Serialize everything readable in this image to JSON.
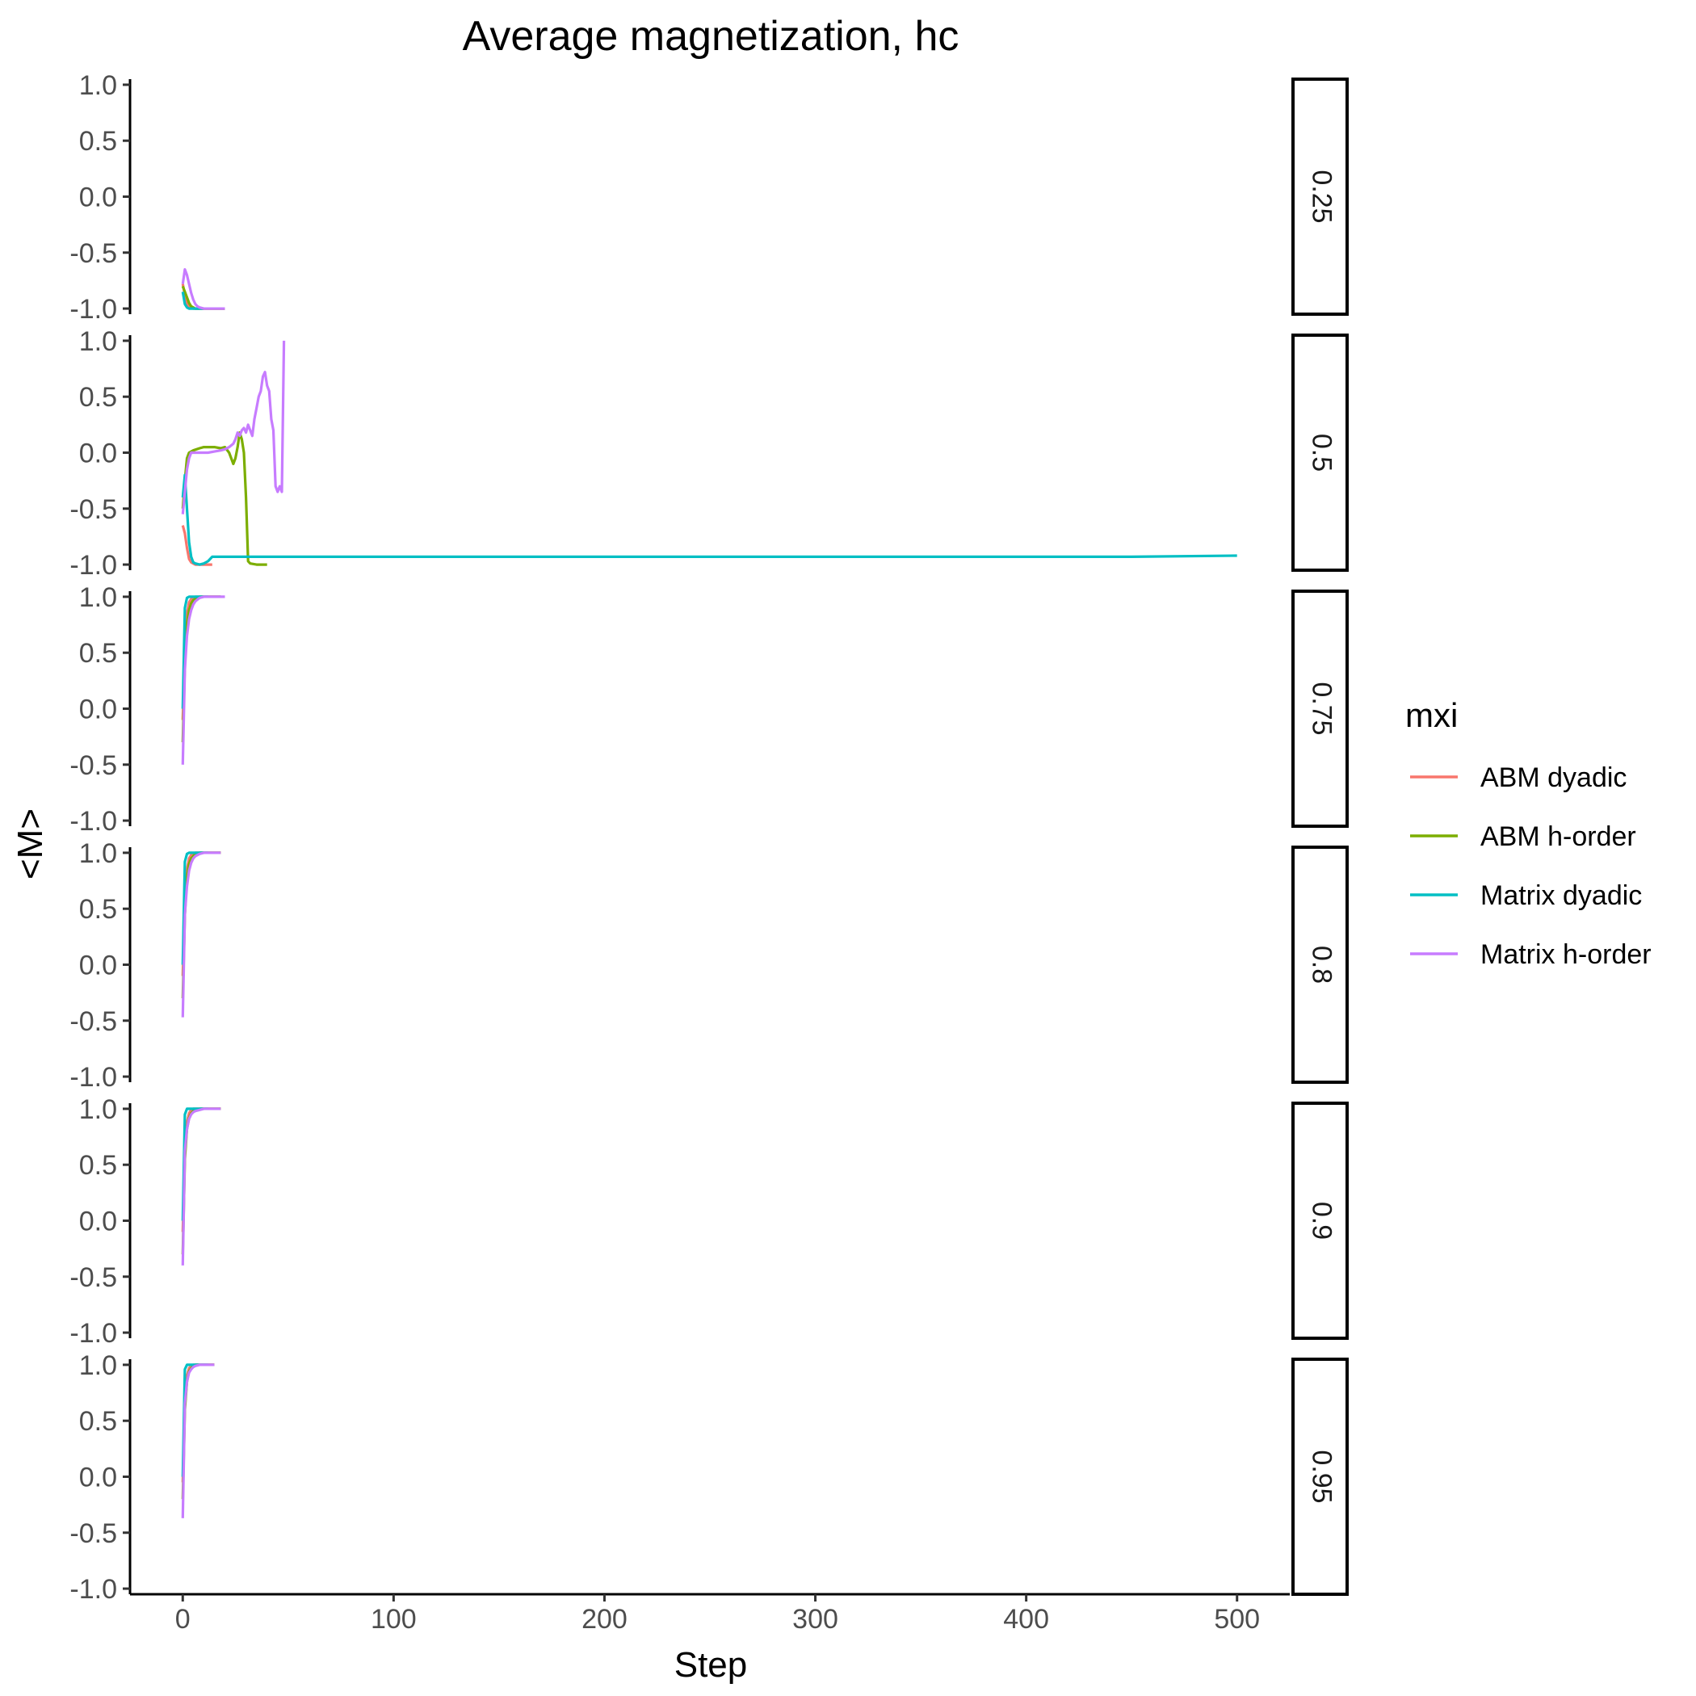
{
  "chart_data": {
    "type": "line",
    "title": "Average magnetization, hc",
    "xlabel": "Step",
    "ylabel": "<M>",
    "xlim": [
      -25,
      525
    ],
    "ylim": [
      -1.05,
      1.05
    ],
    "x_ticks": [
      0,
      100,
      200,
      300,
      400,
      500
    ],
    "y_ticks": [
      1.0,
      0.5,
      0.0,
      -0.5,
      -1.0
    ],
    "x_tick_labels": [
      "0",
      "100",
      "200",
      "300",
      "400",
      "500"
    ],
    "y_tick_labels": [
      "1.0",
      "0.5",
      "0.0",
      "-0.5",
      "-1.0"
    ],
    "grid": false,
    "facet": "rows",
    "legend": {
      "title": "mxi",
      "placement": "right",
      "entries": [
        {
          "label": "ABM dyadic",
          "color": "#F8766D"
        },
        {
          "label": "ABM h-order",
          "color": "#7CAE00"
        },
        {
          "label": "Matrix dyadic",
          "color": "#00BFC4"
        },
        {
          "label": "Matrix h-order",
          "color": "#C77CFF"
        }
      ]
    },
    "panels": [
      {
        "label": "0.25",
        "series": [
          {
            "name": "ABM dyadic",
            "x": [
              0,
              1,
              2,
              3,
              4,
              5,
              6,
              8,
              10,
              15,
              20
            ],
            "y": [
              -0.78,
              -0.88,
              -0.95,
              -0.98,
              -0.99,
              -1.0,
              -1.0,
              -1.0,
              -1.0,
              -1.0,
              -1.0
            ]
          },
          {
            "name": "ABM h-order",
            "x": [
              0,
              1,
              2,
              3,
              4,
              5,
              6,
              8,
              10,
              15,
              20
            ],
            "y": [
              -0.8,
              -0.85,
              -0.9,
              -0.95,
              -0.98,
              -0.99,
              -1.0,
              -1.0,
              -1.0,
              -1.0,
              -1.0
            ]
          },
          {
            "name": "Matrix dyadic",
            "x": [
              0,
              1,
              2,
              3,
              4,
              6,
              8,
              10
            ],
            "y": [
              -0.85,
              -0.96,
              -0.99,
              -1.0,
              -1.0,
              -1.0,
              -1.0,
              -1.0
            ]
          },
          {
            "name": "Matrix h-order",
            "x": [
              0,
              1,
              2,
              3,
              4,
              5,
              6,
              7,
              8,
              10,
              12,
              15,
              20
            ],
            "y": [
              -0.78,
              -0.65,
              -0.7,
              -0.78,
              -0.86,
              -0.92,
              -0.96,
              -0.98,
              -0.99,
              -1.0,
              -1.0,
              -1.0,
              -1.0
            ]
          }
        ]
      },
      {
        "label": "0.5",
        "series": [
          {
            "name": "ABM dyadic",
            "x": [
              0,
              1,
              2,
              3,
              4,
              5,
              6,
              8,
              10,
              12,
              14
            ],
            "y": [
              -0.65,
              -0.72,
              -0.85,
              -0.95,
              -0.98,
              -0.99,
              -1.0,
              -1.0,
              -1.0,
              -1.0,
              -1.0
            ]
          },
          {
            "name": "ABM h-order",
            "x": [
              0,
              1,
              2,
              3,
              5,
              8,
              10,
              12,
              15,
              18,
              20,
              22,
              23,
              24,
              25,
              26,
              27,
              28,
              29,
              30,
              31,
              32,
              35,
              38,
              40
            ],
            "y": [
              -0.5,
              -0.25,
              -0.05,
              0.0,
              0.02,
              0.04,
              0.05,
              0.05,
              0.05,
              0.04,
              0.05,
              0.0,
              -0.05,
              -0.1,
              -0.05,
              0.05,
              0.18,
              0.12,
              0.0,
              -0.4,
              -0.97,
              -0.99,
              -1.0,
              -1.0,
              -1.0
            ]
          },
          {
            "name": "Matrix dyadic",
            "x": [
              0,
              1,
              2,
              3,
              4,
              5,
              6,
              8,
              10,
              12,
              13,
              14,
              20,
              50,
              100,
              150,
              200,
              250,
              300,
              350,
              400,
              450,
              500
            ],
            "y": [
              -0.4,
              -0.2,
              -0.5,
              -0.8,
              -0.93,
              -0.98,
              -0.99,
              -1.0,
              -0.99,
              -0.97,
              -0.95,
              -0.93,
              -0.93,
              -0.93,
              -0.93,
              -0.93,
              -0.93,
              -0.93,
              -0.93,
              -0.93,
              -0.93,
              -0.93,
              -0.92
            ]
          },
          {
            "name": "Matrix h-order",
            "x": [
              0,
              1,
              2,
              3,
              4,
              6,
              8,
              10,
              12,
              15,
              18,
              20,
              22,
              24,
              25,
              26,
              27,
              28,
              29,
              30,
              31,
              32,
              33,
              34,
              35,
              36,
              37,
              38,
              39,
              40,
              41,
              42,
              43,
              44,
              45,
              46,
              47,
              48
            ],
            "y": [
              -0.55,
              -0.35,
              -0.15,
              -0.05,
              0.0,
              0.0,
              0.0,
              0.0,
              0.0,
              0.01,
              0.02,
              0.03,
              0.05,
              0.08,
              0.12,
              0.18,
              0.15,
              0.2,
              0.22,
              0.18,
              0.25,
              0.2,
              0.15,
              0.3,
              0.4,
              0.5,
              0.55,
              0.68,
              0.72,
              0.6,
              0.55,
              0.3,
              0.2,
              -0.3,
              -0.35,
              -0.3,
              -0.35,
              1.0
            ]
          }
        ]
      },
      {
        "label": "0.75",
        "series": [
          {
            "name": "ABM dyadic",
            "x": [
              0,
              1,
              2,
              3,
              4,
              5,
              6,
              8,
              10,
              12,
              15,
              18
            ],
            "y": [
              -0.1,
              0.5,
              0.85,
              0.95,
              0.98,
              0.99,
              1.0,
              1.0,
              1.0,
              1.0,
              1.0,
              1.0
            ]
          },
          {
            "name": "ABM h-order",
            "x": [
              0,
              1,
              2,
              3,
              4,
              5,
              6,
              7,
              8,
              10,
              12,
              15,
              18
            ],
            "y": [
              -0.3,
              0.4,
              0.75,
              0.88,
              0.94,
              0.97,
              0.98,
              0.99,
              1.0,
              1.0,
              1.0,
              1.0,
              1.0
            ]
          },
          {
            "name": "Matrix dyadic",
            "x": [
              0,
              1,
              2,
              3,
              4,
              6,
              8,
              10,
              12
            ],
            "y": [
              0.0,
              0.9,
              0.99,
              1.0,
              1.0,
              1.0,
              1.0,
              1.0,
              1.0
            ]
          },
          {
            "name": "Matrix h-order",
            "x": [
              0,
              1,
              2,
              3,
              4,
              5,
              6,
              8,
              10,
              12,
              15,
              18,
              20
            ],
            "y": [
              -0.5,
              0.35,
              0.65,
              0.8,
              0.88,
              0.93,
              0.96,
              0.99,
              1.0,
              1.0,
              1.0,
              1.0,
              1.0
            ]
          }
        ]
      },
      {
        "label": "0.8",
        "series": [
          {
            "name": "ABM dyadic",
            "x": [
              0,
              1,
              2,
              3,
              4,
              5,
              6,
              8,
              10,
              12,
              15,
              18
            ],
            "y": [
              -0.1,
              0.55,
              0.85,
              0.95,
              0.98,
              0.99,
              1.0,
              1.0,
              1.0,
              1.0,
              1.0,
              1.0
            ]
          },
          {
            "name": "ABM h-order",
            "x": [
              0,
              1,
              2,
              3,
              4,
              5,
              6,
              8,
              10,
              12,
              15,
              18
            ],
            "y": [
              -0.3,
              0.45,
              0.78,
              0.9,
              0.95,
              0.97,
              0.99,
              1.0,
              1.0,
              1.0,
              1.0,
              1.0
            ]
          },
          {
            "name": "Matrix dyadic",
            "x": [
              0,
              1,
              2,
              3,
              4,
              6,
              8,
              10,
              12
            ],
            "y": [
              0.0,
              0.92,
              0.99,
              1.0,
              1.0,
              1.0,
              1.0,
              1.0,
              1.0
            ]
          },
          {
            "name": "Matrix h-order",
            "x": [
              0,
              1,
              2,
              3,
              4,
              5,
              6,
              8,
              10,
              12,
              15,
              18
            ],
            "y": [
              -0.47,
              0.45,
              0.7,
              0.84,
              0.91,
              0.95,
              0.97,
              0.99,
              1.0,
              1.0,
              1.0,
              1.0
            ]
          }
        ]
      },
      {
        "label": "0.9",
        "series": [
          {
            "name": "ABM dyadic",
            "x": [
              0,
              1,
              2,
              3,
              4,
              5,
              6,
              8,
              10,
              12,
              15,
              18
            ],
            "y": [
              -0.1,
              0.6,
              0.88,
              0.96,
              0.99,
              1.0,
              1.0,
              1.0,
              1.0,
              1.0,
              1.0,
              1.0
            ]
          },
          {
            "name": "ABM h-order",
            "x": [
              0,
              1,
              2,
              3,
              4,
              5,
              6,
              8,
              10,
              12,
              15,
              18
            ],
            "y": [
              -0.3,
              0.55,
              0.82,
              0.92,
              0.96,
              0.98,
              0.99,
              1.0,
              1.0,
              1.0,
              1.0,
              1.0
            ]
          },
          {
            "name": "Matrix dyadic",
            "x": [
              0,
              1,
              2,
              3,
              4,
              6,
              8,
              10,
              12
            ],
            "y": [
              0.0,
              0.95,
              1.0,
              1.0,
              1.0,
              1.0,
              1.0,
              1.0,
              1.0
            ]
          },
          {
            "name": "Matrix h-order",
            "x": [
              0,
              1,
              2,
              3,
              4,
              5,
              6,
              8,
              10,
              12,
              15,
              18
            ],
            "y": [
              -0.4,
              0.62,
              0.82,
              0.91,
              0.95,
              0.97,
              0.98,
              0.99,
              1.0,
              1.0,
              1.0,
              1.0
            ]
          }
        ]
      },
      {
        "label": "0.95",
        "series": [
          {
            "name": "ABM dyadic",
            "x": [
              0,
              1,
              2,
              3,
              4,
              5,
              6,
              8,
              10,
              12,
              15
            ],
            "y": [
              -0.05,
              0.65,
              0.9,
              0.97,
              0.99,
              1.0,
              1.0,
              1.0,
              1.0,
              1.0,
              1.0
            ]
          },
          {
            "name": "ABM h-order",
            "x": [
              0,
              1,
              2,
              3,
              4,
              5,
              6,
              8,
              10,
              12,
              15
            ],
            "y": [
              -0.2,
              0.6,
              0.85,
              0.94,
              0.97,
              0.99,
              1.0,
              1.0,
              1.0,
              1.0,
              1.0
            ]
          },
          {
            "name": "Matrix dyadic",
            "x": [
              0,
              1,
              2,
              3,
              4,
              6,
              8,
              10,
              12
            ],
            "y": [
              0.0,
              0.96,
              1.0,
              1.0,
              1.0,
              1.0,
              1.0,
              1.0,
              1.0
            ]
          },
          {
            "name": "Matrix h-order",
            "x": [
              0,
              1,
              2,
              3,
              4,
              5,
              6,
              8,
              10,
              12,
              15
            ],
            "y": [
              -0.37,
              0.65,
              0.85,
              0.93,
              0.96,
              0.98,
              0.99,
              1.0,
              1.0,
              1.0,
              1.0
            ]
          }
        ]
      }
    ]
  }
}
